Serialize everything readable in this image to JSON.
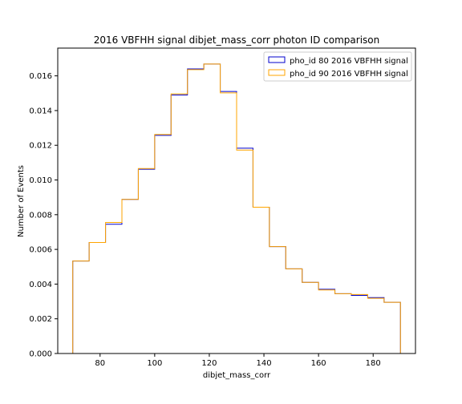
{
  "chart_data": {
    "type": "histogram",
    "title": "2016 VBFHH signal dibjet_mass_corr photon ID comparison",
    "xlabel": "dibjet_mass_corr",
    "ylabel": "Number of Events",
    "xlim": [
      64.5,
      195.5
    ],
    "ylim": [
      0,
      0.0176
    ],
    "xticks": [
      80,
      100,
      120,
      140,
      160,
      180
    ],
    "xtick_labels": [
      "80",
      "100",
      "120",
      "140",
      "160",
      "180"
    ],
    "yticks": [
      0,
      0.002,
      0.004,
      0.006,
      0.008,
      0.01,
      0.012,
      0.014,
      0.016
    ],
    "ytick_labels": [
      "0.000",
      "0.002",
      "0.004",
      "0.006",
      "0.008",
      "0.010",
      "0.012",
      "0.014",
      "0.016"
    ],
    "bin_edges": [
      70,
      76,
      82,
      88,
      94,
      100,
      106,
      112,
      118,
      124,
      130,
      136,
      142,
      148,
      154,
      160,
      166,
      172,
      178,
      184,
      190
    ],
    "legend_position": "top-right",
    "series": [
      {
        "name": "pho_id 80 2016 VBFHH signal",
        "color": "#0000cc",
        "values": [
          0.00533,
          0.0064,
          0.00745,
          0.00888,
          0.01062,
          0.01257,
          0.0149,
          0.0164,
          0.01668,
          0.0151,
          0.01183,
          0.00843,
          0.00616,
          0.00488,
          0.0041,
          0.0037,
          0.00345,
          0.00335,
          0.00322,
          0.00295
        ]
      },
      {
        "name": "pho_id 90 2016 VBFHH signal",
        "color": "#ffa500",
        "values": [
          0.00533,
          0.0064,
          0.00755,
          0.00888,
          0.01066,
          0.01262,
          0.01496,
          0.01636,
          0.01668,
          0.01502,
          0.01172,
          0.00843,
          0.00616,
          0.00488,
          0.0041,
          0.00366,
          0.00345,
          0.0034,
          0.00318,
          0.00295
        ]
      }
    ]
  }
}
